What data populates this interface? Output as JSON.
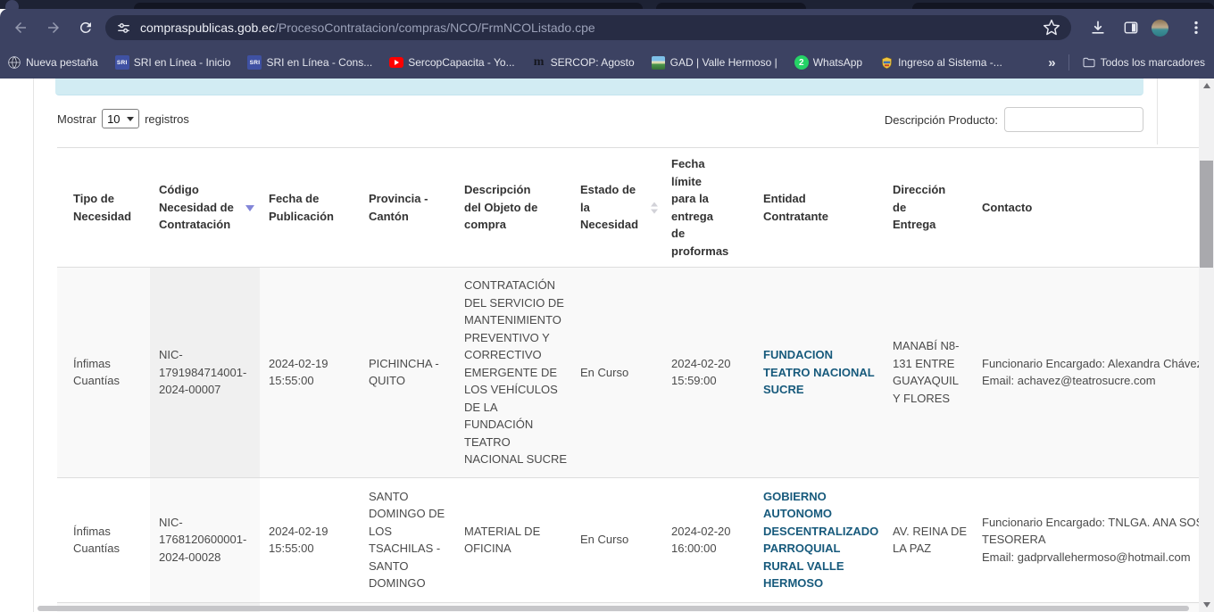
{
  "browser": {
    "url_domain": "compraspublicas.gob.ec",
    "url_path": "/ProcesoContratacion/compras/NCO/FrmNCOListado.cpe",
    "toolbar_icons": [
      "back-icon",
      "forward-icon",
      "reload-icon",
      "site-settings-icon",
      "star-icon",
      "download-icon",
      "side-panel-icon",
      "profile-avatar",
      "menu-icon"
    ],
    "bookmarks": [
      {
        "label": "Nueva pestaña",
        "icon": "globe-icon"
      },
      {
        "label": "SRI en Línea - Inicio",
        "icon": "sri-icon"
      },
      {
        "label": "SRI en Línea - Cons...",
        "icon": "sri-icon"
      },
      {
        "label": "SercopCapacita - Yo...",
        "icon": "youtube-icon"
      },
      {
        "label": "SERCOP: Agosto",
        "icon": "m-icon"
      },
      {
        "label": "GAD | Valle Hermoso |",
        "icon": "image-icon"
      },
      {
        "label": "WhatsApp",
        "icon": "whatsapp-icon"
      },
      {
        "label": "Ingreso al Sistema -...",
        "icon": "shield-icon"
      }
    ],
    "bookmarks_overflow": "»",
    "all_bookmarks_label": "Todos los marcadores"
  },
  "controls": {
    "show_label": "Mostrar",
    "page_size": "10",
    "records_label": "registros",
    "filter_label": "Descripción Producto:",
    "filter_value": ""
  },
  "table": {
    "headers": [
      {
        "key": "tipo",
        "label": "Tipo de Necesidad",
        "lines": [
          "Tipo de",
          "Necesidad"
        ],
        "sort": "none"
      },
      {
        "key": "codigo",
        "label": "Código Necesidad de Contratación",
        "lines": [
          "Código",
          "Necesidad de",
          "Contratación"
        ],
        "sort": "desc"
      },
      {
        "key": "fecha_publicacion",
        "label": "Fecha de Publicación",
        "lines": [
          "Fecha de",
          "Publicación"
        ],
        "sort": "none"
      },
      {
        "key": "provincia",
        "label": "Provincia - Cantón",
        "lines": [
          "Provincia -",
          "Cantón"
        ],
        "sort": "none"
      },
      {
        "key": "descripcion",
        "label": "Descripción del Objeto de compra",
        "lines": [
          "Descripción",
          "del Objeto de",
          "compra"
        ],
        "sort": "none"
      },
      {
        "key": "estado",
        "label": "Estado de la Necesidad",
        "lines": [
          "Estado de",
          "la",
          "Necesidad"
        ],
        "sort": "both"
      },
      {
        "key": "fecha_limite",
        "label": "Fecha límite para la entrega de proformas",
        "lines": [
          "Fecha",
          "límite",
          "para la",
          "entrega",
          "de",
          "proformas"
        ],
        "sort": "none"
      },
      {
        "key": "entidad",
        "label": "Entidad Contratante",
        "lines": [
          "Entidad",
          "Contratante"
        ],
        "sort": "none"
      },
      {
        "key": "direccion",
        "label": "Dirección de Entrega",
        "lines": [
          "Dirección",
          "de",
          "Entrega"
        ],
        "sort": "none"
      },
      {
        "key": "contacto",
        "label": "Contacto",
        "lines": [
          "Contacto"
        ],
        "sort": "none"
      }
    ],
    "rows": [
      {
        "tipo": [
          "Ínfimas",
          "Cuantías"
        ],
        "codigo": [
          "NIC-",
          "1791984714001-",
          "2024-00007"
        ],
        "fecha_publicacion": [
          "2024-02-19",
          "15:55:00"
        ],
        "provincia": [
          "PICHINCHA -",
          "QUITO"
        ],
        "descripcion": [
          "CONTRATACIÓN",
          "DEL SERVICIO DE",
          "MANTENIMIENTO",
          "PREVENTIVO Y",
          "CORRECTIVO",
          "EMERGENTE DE",
          "LOS VEHÍCULOS",
          "DE LA",
          "FUNDACIÓN",
          "TEATRO",
          "NACIONAL SUCRE"
        ],
        "estado": [
          "En Curso"
        ],
        "fecha_limite": [
          "2024-02-20",
          "15:59:00"
        ],
        "entidad": [
          "FUNDACION",
          "TEATRO NACIONAL",
          "SUCRE"
        ],
        "direccion": [
          "MANABÍ N8-",
          "131 ENTRE",
          "GUAYAQUIL",
          "Y FLORES"
        ],
        "contacto": [
          "Funcionario Encargado: Alexandra Chávez",
          "Email: achavez@teatrosucre.com"
        ]
      },
      {
        "tipo": [
          "Ínfimas",
          "Cuantías"
        ],
        "codigo": [
          "NIC-",
          "1768120600001-",
          "2024-00028"
        ],
        "fecha_publicacion": [
          "2024-02-19",
          "15:55:00"
        ],
        "provincia": [
          "SANTO",
          "DOMINGO DE",
          "LOS",
          "TSACHILAS -",
          "SANTO",
          "DOMINGO"
        ],
        "descripcion": [
          "MATERIAL DE",
          "OFICINA"
        ],
        "estado": [
          "En Curso"
        ],
        "fecha_limite": [
          "2024-02-20",
          "16:00:00"
        ],
        "entidad": [
          "GOBIERNO",
          "AUTONOMO",
          "DESCENTRALIZADO",
          "PARROQUIAL",
          "RURAL VALLE",
          "HERMOSO"
        ],
        "direccion": [
          "AV. REINA DE",
          "LA PAZ"
        ],
        "contacto": [
          "Funcionario Encargado: TNLGA. ANA SOSA",
          "TESORERA",
          "Email: gadprvallehermoso@hotmail.com"
        ]
      }
    ]
  },
  "colors": {
    "chrome_bar": "#3c4262",
    "tabstrip": "#1d2234",
    "omnibox": "#272c44",
    "alert_bg": "#d2ecf3",
    "link": "#175a7c",
    "row_stripe": "#f9f9f9",
    "sorted_col_stripe": "#f0f0f0",
    "sort_active_arrow": "#8285d8"
  }
}
